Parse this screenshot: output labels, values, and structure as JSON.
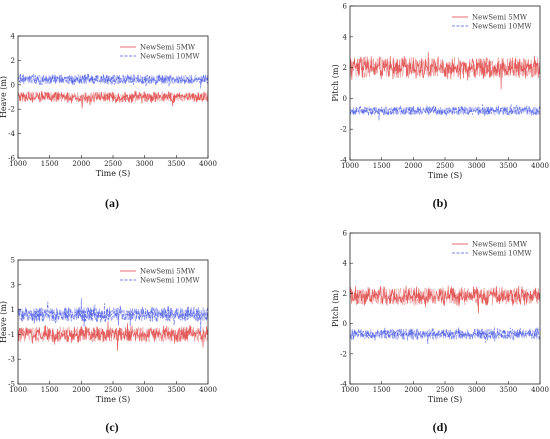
{
  "chart_data": [
    {
      "type": "line",
      "caption": "(a)",
      "xlabel": "Time (S)",
      "ylabel": "Heave (m)",
      "xlim": [
        1000,
        4000
      ],
      "ylim": [
        -6,
        4
      ],
      "xticks": [
        1000,
        1500,
        2000,
        2500,
        3000,
        3500,
        4000
      ],
      "yticks": [
        -6,
        -4,
        -2,
        0,
        2,
        4
      ],
      "legend_position": "top-right",
      "grid": false,
      "series": [
        {
          "name": "NewSemi 5MW",
          "mean": -1.0,
          "amplitude": 0.55,
          "color": "#e04848",
          "dash": "solid"
        },
        {
          "name": "NewSemi 10MW",
          "mean": 0.45,
          "amplitude": 0.5,
          "color": "#4a5ae8",
          "dash": "dashed"
        }
      ]
    },
    {
      "type": "line",
      "caption": "(b)",
      "xlabel": "Time (S)",
      "ylabel": "Pitch (m)",
      "xlim": [
        1000,
        4000
      ],
      "ylim": [
        -4,
        6
      ],
      "xticks": [
        1000,
        1500,
        2000,
        2500,
        3000,
        3500,
        4000
      ],
      "yticks": [
        -4,
        -2,
        0,
        2,
        4,
        6
      ],
      "legend_position": "top-right",
      "grid": false,
      "series": [
        {
          "name": "NewSemi 5MW",
          "mean": 2.0,
          "amplitude": 0.85,
          "color": "#e04848",
          "dash": "solid"
        },
        {
          "name": "NewSemi 10MW",
          "mean": -0.8,
          "amplitude": 0.35,
          "color": "#4a5ae8",
          "dash": "dashed"
        }
      ]
    },
    {
      "type": "line",
      "caption": "(c)",
      "xlabel": "Time (S)",
      "ylabel": "Heave (m)",
      "xlim": [
        1000,
        4000
      ],
      "ylim": [
        -5,
        5
      ],
      "xticks": [
        1000,
        1500,
        2000,
        2500,
        3000,
        3500,
        4000
      ],
      "yticks": [
        -5,
        -3,
        -1,
        1,
        3,
        5
      ],
      "legend_position": "top-right",
      "grid": false,
      "series": [
        {
          "name": "NewSemi 5MW",
          "mean": -1.0,
          "amplitude": 0.8,
          "color": "#e04848",
          "dash": "solid"
        },
        {
          "name": "NewSemi 10MW",
          "mean": 0.6,
          "amplitude": 0.75,
          "color": "#4a5ae8",
          "dash": "dashed"
        }
      ]
    },
    {
      "type": "line",
      "caption": "(d)",
      "xlabel": "Time (S)",
      "ylabel": "Pitch (m)",
      "xlim": [
        1000,
        4000
      ],
      "ylim": [
        -4,
        6
      ],
      "xticks": [
        1000,
        1500,
        2000,
        2500,
        3000,
        3500,
        4000
      ],
      "yticks": [
        -4,
        -2,
        0,
        2,
        4,
        6
      ],
      "legend_position": "top-right",
      "grid": false,
      "series": [
        {
          "name": "NewSemi 5MW",
          "mean": 1.8,
          "amplitude": 0.75,
          "color": "#e04848",
          "dash": "solid"
        },
        {
          "name": "NewSemi 10MW",
          "mean": -0.7,
          "amplitude": 0.45,
          "color": "#4a5ae8",
          "dash": "dashed"
        }
      ]
    }
  ]
}
